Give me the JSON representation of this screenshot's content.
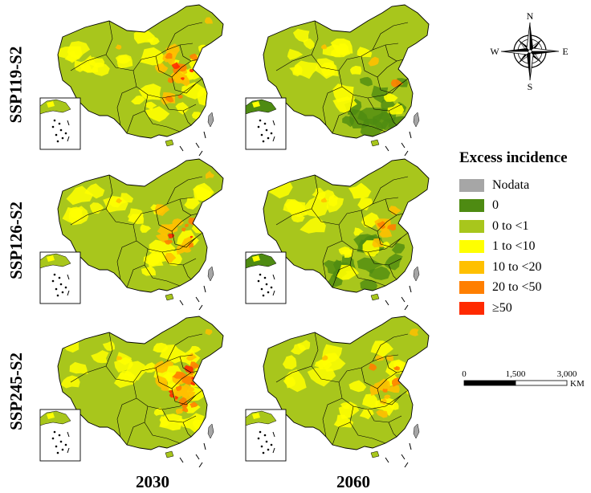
{
  "rows": [
    {
      "label": "SSP119-S2"
    },
    {
      "label": "SSP126-S2"
    },
    {
      "label": "SSP245-S2"
    }
  ],
  "columns": [
    {
      "label": "2030"
    },
    {
      "label": "2060"
    }
  ],
  "compass": {
    "n": "N",
    "s": "S",
    "e": "E",
    "w": "W"
  },
  "legend": {
    "title": "Excess incidence",
    "items": [
      {
        "label": "Nodata",
        "color": "#a6a6a6"
      },
      {
        "label": "0",
        "color": "#4e8b12"
      },
      {
        "label": "0 to <1",
        "color": "#a8c61c"
      },
      {
        "label": "1 to <10",
        "color": "#ffff00"
      },
      {
        "label": "10 to <20",
        "color": "#ffc000"
      },
      {
        "label": "20 to <50",
        "color": "#ff7f00"
      },
      {
        "label": "≥50",
        "color": "#ff2a00"
      }
    ]
  },
  "scalebar": {
    "ticks": [
      "0",
      "1,500",
      "3,000"
    ],
    "unit": "KM"
  },
  "maps": [
    {
      "row": 0,
      "col": 0,
      "intensity": 0.72
    },
    {
      "row": 0,
      "col": 1,
      "intensity": 0.08
    },
    {
      "row": 1,
      "col": 0,
      "intensity": 0.62
    },
    {
      "row": 1,
      "col": 1,
      "intensity": 0.22
    },
    {
      "row": 2,
      "col": 0,
      "intensity": 0.95
    },
    {
      "row": 2,
      "col": 1,
      "intensity": 0.5
    }
  ]
}
